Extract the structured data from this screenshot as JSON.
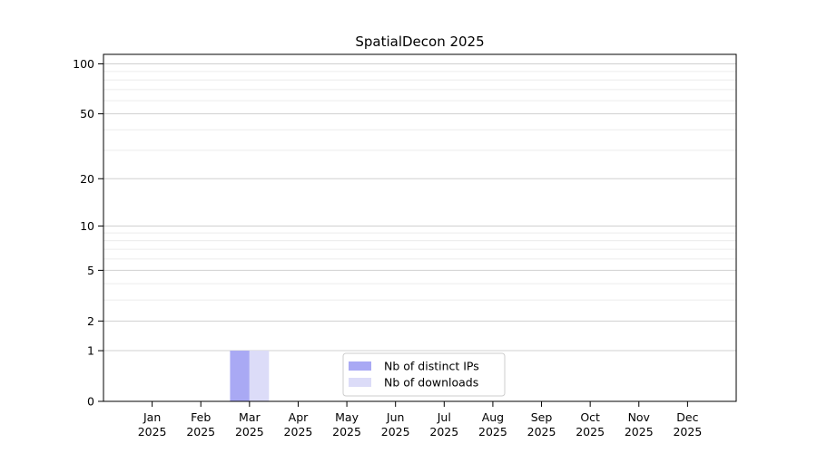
{
  "figure": {
    "background": "#ffffff"
  },
  "chart_data": {
    "type": "bar",
    "title": "SpatialDecon 2025",
    "xlabel": "",
    "ylabel": "",
    "categories": [
      "Jan 2025",
      "Feb 2025",
      "Mar 2025",
      "Apr 2025",
      "May 2025",
      "Jun 2025",
      "Jul 2025",
      "Aug 2025",
      "Sep 2025",
      "Oct 2025",
      "Nov 2025",
      "Dec 2025"
    ],
    "series": [
      {
        "name": "Nb of distinct IPs",
        "color": "#a9a9f4",
        "values": [
          0,
          0,
          1,
          0,
          0,
          0,
          0,
          0,
          0,
          0,
          0,
          0
        ]
      },
      {
        "name": "Nb of downloads",
        "color": "#dcdcf8",
        "values": [
          0,
          0,
          1,
          0,
          0,
          0,
          0,
          0,
          0,
          0,
          0,
          0
        ]
      }
    ],
    "yscale": "log1p",
    "ylim": [
      0,
      114
    ],
    "yticks": [
      0,
      1,
      2,
      5,
      10,
      20,
      50,
      100
    ],
    "minor_yticks": [
      3,
      4,
      6,
      7,
      8,
      9,
      30,
      40,
      60,
      70,
      80,
      90
    ],
    "grid": "horizontal",
    "major_grid_color": "#d0d0d0",
    "minor_grid_color": "#ececec",
    "axis_color": "#000000",
    "text_color": "#000000",
    "legend": {
      "position": "lower center",
      "border_color": "#cccccc",
      "background": "#ffffff",
      "entries": [
        "Nb of distinct IPs",
        "Nb of downloads"
      ]
    }
  }
}
